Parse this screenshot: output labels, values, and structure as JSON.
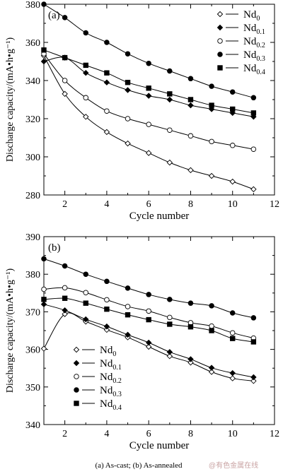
{
  "figure": {
    "caption": "(a) As-cast; (b) As-annealed",
    "watermark": "@有色金属在线"
  },
  "chart_data": [
    {
      "type": "line",
      "panel_label": "(a)",
      "xlabel": "Cycle number",
      "ylabel": "Discharge capacity/(mA•h•g⁻¹)",
      "xlim": [
        1,
        12
      ],
      "ylim": [
        280,
        380
      ],
      "xticks": [
        2,
        4,
        6,
        8,
        10,
        12
      ],
      "yticks": [
        280,
        300,
        320,
        340,
        360,
        380
      ],
      "legend_position": "top-right",
      "x": [
        1,
        2,
        3,
        4,
        5,
        6,
        7,
        8,
        9,
        10,
        11
      ],
      "series": [
        {
          "name": "Nd",
          "sub": "0",
          "marker": "diamond-open",
          "values": [
            353,
            333,
            321,
            313,
            307,
            302,
            297,
            293,
            290,
            287,
            283
          ]
        },
        {
          "name": "Nd",
          "sub": "0.1",
          "marker": "diamond-filled",
          "values": [
            350,
            352,
            344,
            339,
            335,
            332,
            330,
            327,
            325,
            323,
            321
          ]
        },
        {
          "name": "Nd",
          "sub": "0.2",
          "marker": "circle-open",
          "values": [
            354,
            340,
            331,
            324,
            320,
            317,
            314,
            311,
            308,
            306,
            304
          ]
        },
        {
          "name": "Nd",
          "sub": "0.3",
          "marker": "circle-filled",
          "values": [
            380,
            373,
            365,
            360,
            354,
            349,
            345,
            341,
            337,
            334,
            331
          ]
        },
        {
          "name": "Nd",
          "sub": "0.4",
          "marker": "square-filled",
          "values": [
            356,
            352,
            348,
            344,
            339,
            336,
            333,
            330,
            327,
            325,
            323
          ]
        }
      ]
    },
    {
      "type": "line",
      "panel_label": "(b)",
      "xlabel": "Cycle number",
      "ylabel": "Discharge capacity/(mA•h•g⁻¹)",
      "xlim": [
        1,
        12
      ],
      "ylim": [
        340,
        390
      ],
      "xticks": [
        2,
        4,
        6,
        8,
        10,
        12
      ],
      "yticks": [
        340,
        350,
        360,
        370,
        380,
        390
      ],
      "legend_position": "bottom-left",
      "x": [
        1,
        2,
        3,
        4,
        5,
        6,
        7,
        8,
        9,
        10,
        11
      ],
      "series": [
        {
          "name": "Nd",
          "sub": "0",
          "marker": "diamond-open",
          "values": [
            360.2,
            369.4,
            367.4,
            365.2,
            363.2,
            360.7,
            358.2,
            356.5,
            354.0,
            352.3,
            351.6
          ]
        },
        {
          "name": "Nd",
          "sub": "0.1",
          "marker": "diamond-filled",
          "values": [
            372.0,
            370.4,
            368.0,
            366.1,
            363.9,
            361.8,
            359.3,
            357.4,
            355.1,
            353.7,
            352.6
          ]
        },
        {
          "name": "Nd",
          "sub": "0.2",
          "marker": "circle-open",
          "values": [
            376.0,
            376.4,
            375.1,
            373.2,
            371.4,
            370.2,
            368.5,
            367.1,
            366.2,
            364.4,
            363.0
          ]
        },
        {
          "name": "Nd",
          "sub": "0.3",
          "marker": "circle-filled",
          "values": [
            384.1,
            382.2,
            380.0,
            378.1,
            376.3,
            374.6,
            373.3,
            372.3,
            371.6,
            369.7,
            368.4
          ]
        },
        {
          "name": "Nd",
          "sub": "0.4",
          "marker": "square-filled",
          "values": [
            373.3,
            373.6,
            372.3,
            370.7,
            369.2,
            367.9,
            366.7,
            366.0,
            365.0,
            362.9,
            362.0
          ]
        }
      ]
    }
  ]
}
